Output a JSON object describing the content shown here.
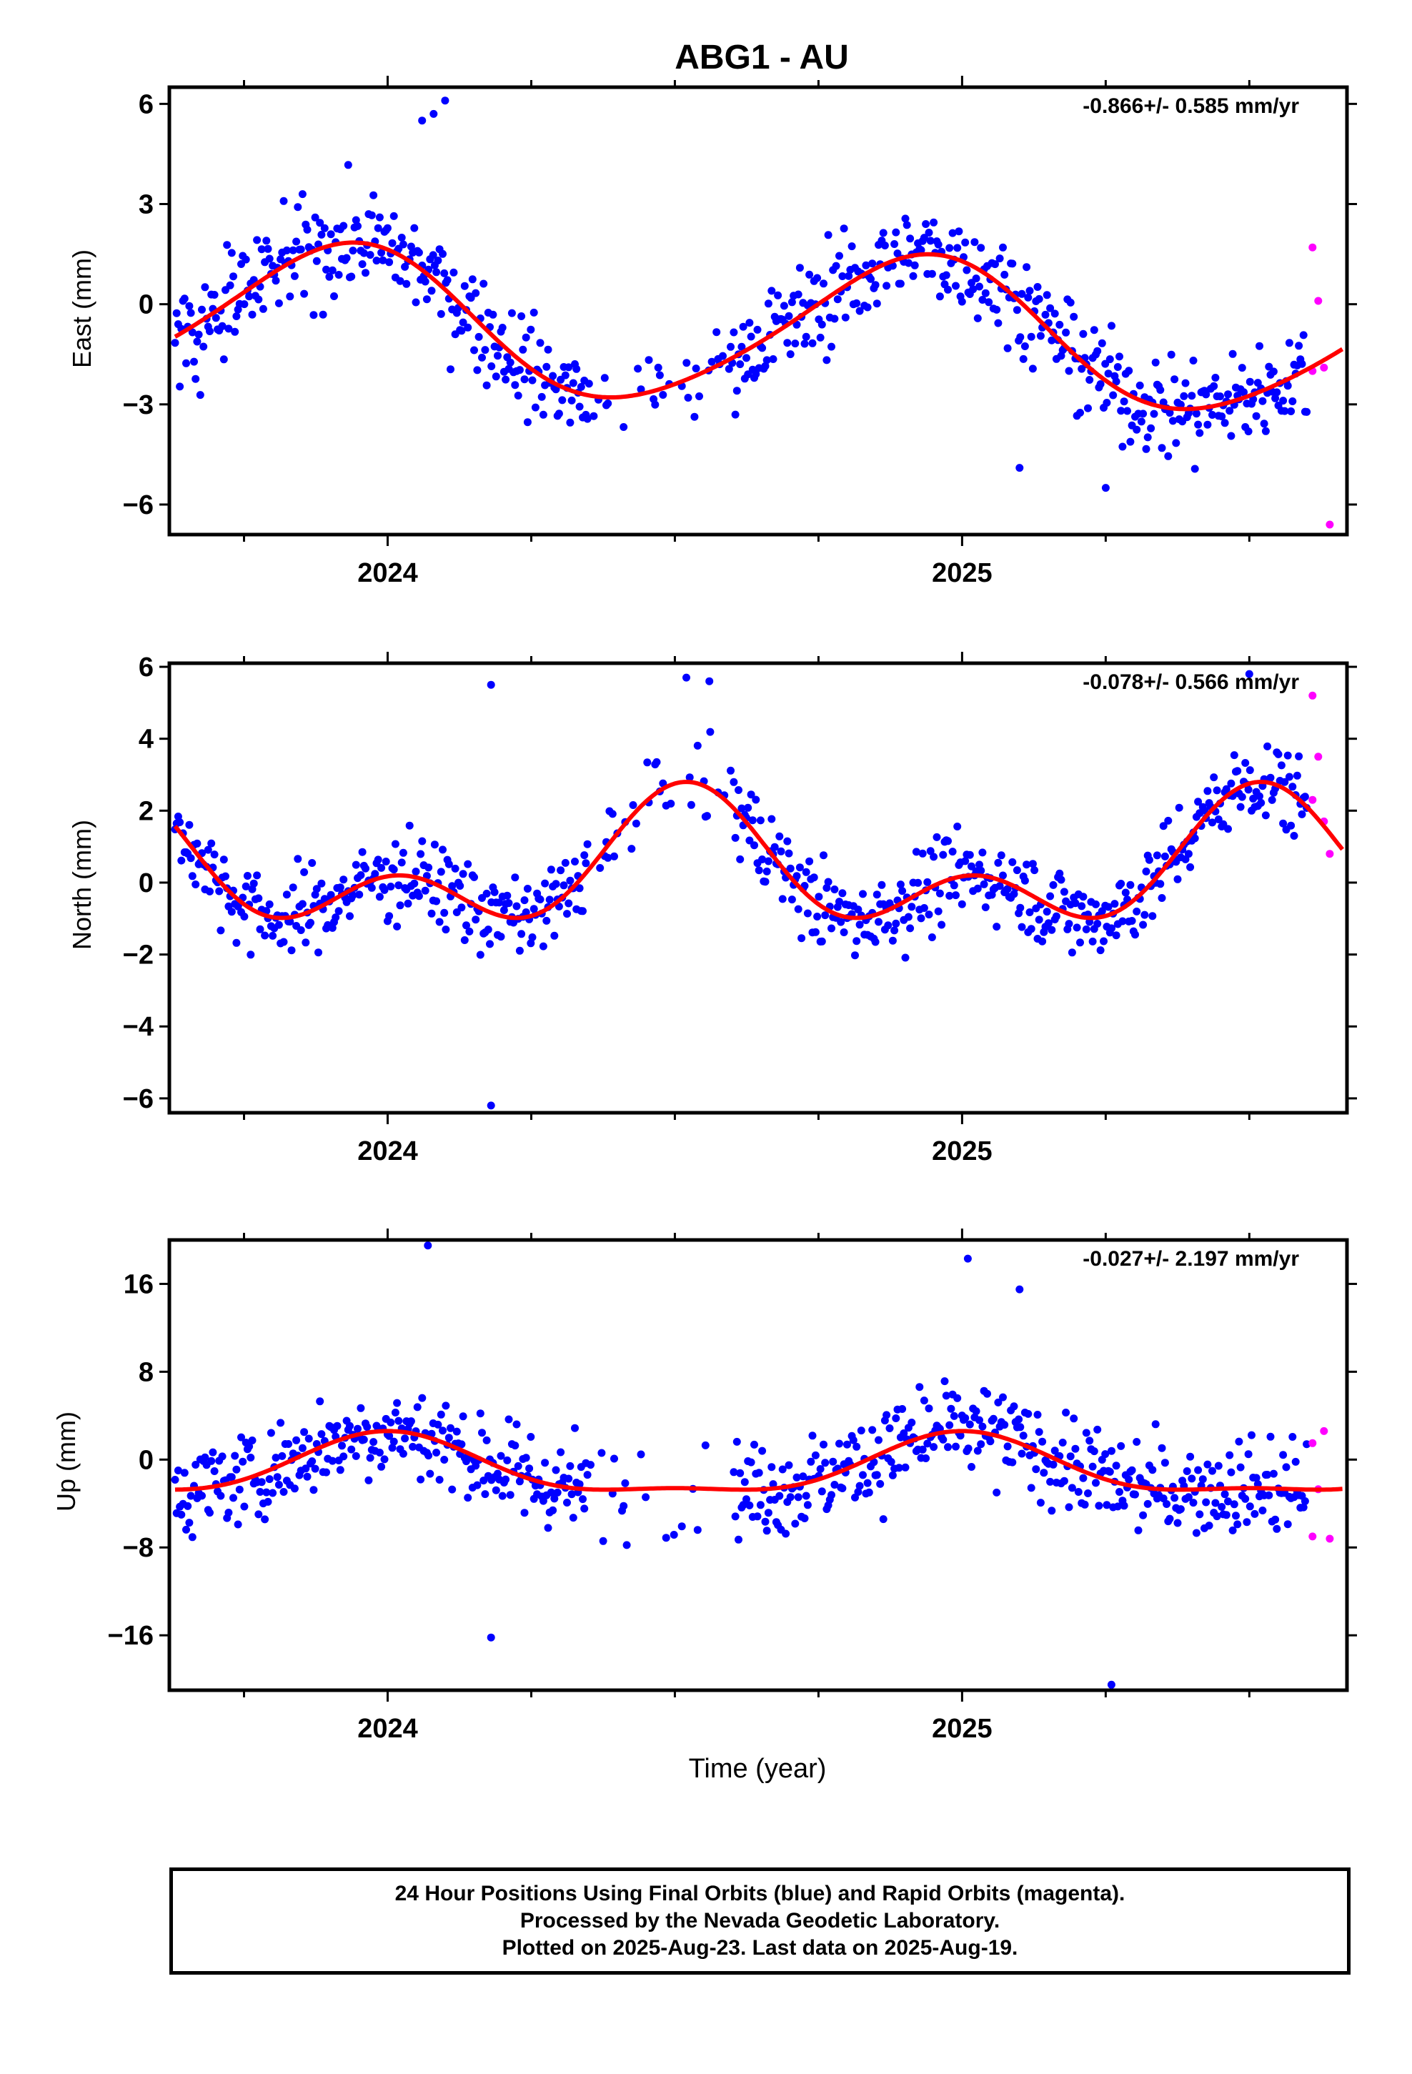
{
  "colors": {
    "final": "#0000ff",
    "rapid": "#ff00ff",
    "model": "#ff0000",
    "frame": "#000000"
  },
  "chart_data": {
    "type": "scatter",
    "title": "ABG1 - AU",
    "xlabel": "Time (year)",
    "xlim": [
      2023.62,
      2025.67
    ],
    "x_major_ticks": [
      2024,
      2025
    ],
    "x_minor_ticks": [
      2023.75,
      2024.25,
      2024.5,
      2024.75,
      2025.25,
      2025.5
    ],
    "panels": [
      {
        "ylabel": "East (mm)",
        "rate": "-0.866+/- 0.585 mm/yr",
        "ylim": [
          -6.9,
          6.5
        ],
        "yticks": [
          6,
          3,
          0,
          -3,
          -6
        ],
        "amplitude": 1.9,
        "outliers": [
          [
            2024.06,
            5.5
          ],
          [
            2024.08,
            5.7
          ],
          [
            2024.1,
            6.1
          ],
          [
            2025.1,
            -4.9
          ],
          [
            2025.25,
            -5.5
          ]
        ],
        "rapid": [
          [
            2025.61,
            1.7
          ],
          [
            2025.62,
            0.1
          ],
          [
            2025.61,
            -2.0
          ],
          [
            2025.63,
            -1.9
          ],
          [
            2025.64,
            -6.6
          ]
        ]
      },
      {
        "ylabel": "North (mm)",
        "rate": "-0.078+/- 0.566 mm/yr",
        "ylim": [
          -6.4,
          6.1
        ],
        "yticks": [
          6,
          4,
          2,
          0,
          -2,
          -4,
          -6
        ],
        "amplitude": 1.5,
        "outliers": [
          [
            2024.18,
            5.5
          ],
          [
            2024.18,
            -6.2
          ],
          [
            2024.52,
            5.7
          ],
          [
            2024.56,
            5.6
          ],
          [
            2025.5,
            5.8
          ]
        ],
        "rapid": [
          [
            2025.61,
            5.2
          ],
          [
            2025.62,
            3.5
          ],
          [
            2025.61,
            2.3
          ],
          [
            2025.63,
            1.7
          ],
          [
            2025.64,
            0.8
          ]
        ]
      },
      {
        "ylabel": "Up (mm)",
        "rate": "-0.027+/- 2.197 mm/yr",
        "ylim": [
          -21,
          20
        ],
        "yticks": [
          16,
          8,
          0,
          -8,
          -16
        ],
        "amplitude": 5.5,
        "outliers": [
          [
            2024.07,
            19.5
          ],
          [
            2025.01,
            18.3
          ],
          [
            2025.26,
            -20.5
          ],
          [
            2025.1,
            15.5
          ],
          [
            2024.18,
            -16.2
          ]
        ],
        "rapid": [
          [
            2025.61,
            1.5
          ],
          [
            2025.62,
            -2.7
          ],
          [
            2025.61,
            -7.0
          ],
          [
            2025.63,
            2.6
          ],
          [
            2025.64,
            -7.2
          ]
        ]
      }
    ],
    "series": [
      {
        "name": "Final Orbits (blue)",
        "color": "#0000ff"
      },
      {
        "name": "Rapid Orbits (magenta)",
        "color": "#ff00ff"
      }
    ]
  },
  "footer": {
    "line1": "24 Hour Positions Using Final Orbits (blue) and Rapid Orbits (magenta).",
    "line2": "Processed by the Nevada Geodetic Laboratory.",
    "line3": "Plotted on 2025-Aug-23. Last data on 2025-Aug-19."
  }
}
